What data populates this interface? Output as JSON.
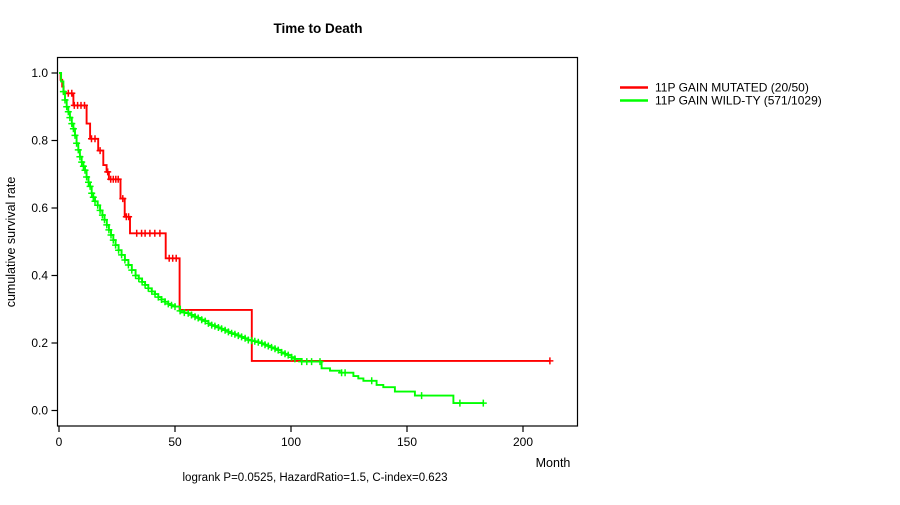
{
  "title": "Time to Death",
  "axes": {
    "y_label": "cumulative survival rate",
    "x_label": "Month"
  },
  "footnote": "logrank P=0.0525, HazardRatio=1.5, C-index=0.623",
  "legend": {
    "entries": [
      {
        "label": "11P GAIN MUTATED (20/50)",
        "color": "#ff0000"
      },
      {
        "label": "11P GAIN WILD-TY (571/1029)",
        "color": "#00ff00"
      }
    ]
  },
  "colors": {
    "mutated": "#ff0000",
    "wildtype": "#00ff00",
    "axis": "#000000"
  },
  "chart_data": {
    "type": "line",
    "subtype": "kaplan_meier_step",
    "title": "Time to Death",
    "xlabel": "Month",
    "ylabel": "cumulative survival rate",
    "xlim": [
      0,
      223
    ],
    "ylim": [
      0.0,
      1.0
    ],
    "x_ticks": [
      0,
      50,
      100,
      150,
      200
    ],
    "y_ticks": [
      1.0,
      0.8,
      0.6,
      0.4,
      0.2,
      0.0
    ],
    "grid": false,
    "legend_position": "outside-right-top",
    "annotation": "logrank P=0.0525, HazardRatio=1.5, C-index=0.623",
    "series": [
      {
        "name": "11P GAIN MUTATED (20/50)",
        "color": "#ff0000",
        "n_events": 20,
        "n_total": 50,
        "end_month": 211.6,
        "points": [
          [
            0,
            1.0
          ],
          [
            0.7,
            0.98
          ],
          [
            1.4,
            0.96
          ],
          [
            2.0,
            0.94
          ],
          [
            6.2,
            0.904
          ],
          [
            11.9,
            0.85
          ],
          [
            13.4,
            0.805
          ],
          [
            16.9,
            0.77
          ],
          [
            19.1,
            0.727
          ],
          [
            20.5,
            0.707
          ],
          [
            21.5,
            0.685
          ],
          [
            26.5,
            0.628
          ],
          [
            28.3,
            0.574
          ],
          [
            30.6,
            0.525
          ],
          [
            46.0,
            0.451
          ],
          [
            52.0,
            0.298
          ],
          [
            83.1,
            0.147
          ]
        ],
        "censors": [
          [
            4.0,
            0.94
          ],
          [
            5.5,
            0.94
          ],
          [
            6.6,
            0.904
          ],
          [
            8.0,
            0.904
          ],
          [
            9.5,
            0.904
          ],
          [
            11.0,
            0.904
          ],
          [
            14.0,
            0.805
          ],
          [
            15.5,
            0.805
          ],
          [
            17.7,
            0.77
          ],
          [
            21.0,
            0.707
          ],
          [
            22.3,
            0.685
          ],
          [
            23.4,
            0.685
          ],
          [
            24.5,
            0.685
          ],
          [
            25.5,
            0.685
          ],
          [
            27.5,
            0.628
          ],
          [
            29.0,
            0.574
          ],
          [
            30.0,
            0.574
          ],
          [
            33.5,
            0.525
          ],
          [
            35.6,
            0.525
          ],
          [
            37.1,
            0.525
          ],
          [
            39.2,
            0.525
          ],
          [
            41.3,
            0.525
          ],
          [
            43.5,
            0.525
          ],
          [
            47.5,
            0.451
          ],
          [
            49.0,
            0.451
          ],
          [
            50.5,
            0.451
          ],
          [
            211.6,
            0.147
          ]
        ],
        "censor_dense_range": null
      },
      {
        "name": "11P GAIN WILD-TY (571/1029)",
        "color": "#00ff00",
        "n_events": 571,
        "n_total": 1029,
        "end_month": 182.9,
        "points": [
          [
            0,
            1.0
          ],
          [
            0.9,
            0.975
          ],
          [
            1.9,
            0.945
          ],
          [
            2.6,
            0.92
          ],
          [
            3.3,
            0.9
          ],
          [
            4.0,
            0.885
          ],
          [
            4.7,
            0.868
          ],
          [
            5.5,
            0.85
          ],
          [
            6.2,
            0.835
          ],
          [
            6.9,
            0.815
          ],
          [
            7.6,
            0.792
          ],
          [
            8.3,
            0.772
          ],
          [
            9.0,
            0.752
          ],
          [
            9.8,
            0.736
          ],
          [
            10.5,
            0.724
          ],
          [
            11.2,
            0.712
          ],
          [
            11.9,
            0.692
          ],
          [
            12.7,
            0.676
          ],
          [
            13.4,
            0.664
          ],
          [
            14.1,
            0.644
          ],
          [
            14.8,
            0.632
          ],
          [
            15.5,
            0.62
          ],
          [
            16.7,
            0.608
          ],
          [
            17.7,
            0.593
          ],
          [
            18.7,
            0.579
          ],
          [
            19.6,
            0.565
          ],
          [
            20.6,
            0.55
          ],
          [
            21.5,
            0.535
          ],
          [
            22.4,
            0.52
          ],
          [
            23.4,
            0.505
          ],
          [
            24.4,
            0.49
          ],
          [
            25.7,
            0.475
          ],
          [
            27.0,
            0.461
          ],
          [
            28.4,
            0.446
          ],
          [
            29.9,
            0.431
          ],
          [
            31.4,
            0.416
          ],
          [
            33.0,
            0.4
          ],
          [
            34.4,
            0.391
          ],
          [
            35.8,
            0.381
          ],
          [
            37.1,
            0.372
          ],
          [
            38.5,
            0.362
          ],
          [
            40.0,
            0.353
          ],
          [
            41.4,
            0.345
          ],
          [
            42.8,
            0.336
          ],
          [
            44.2,
            0.329
          ],
          [
            45.7,
            0.322
          ],
          [
            47.1,
            0.316
          ],
          [
            48.5,
            0.312
          ],
          [
            50.0,
            0.308
          ],
          [
            52.2,
            0.295
          ],
          [
            54.0,
            0.29
          ],
          [
            55.7,
            0.288
          ],
          [
            57.1,
            0.283
          ],
          [
            58.6,
            0.278
          ],
          [
            60.0,
            0.274
          ],
          [
            61.5,
            0.269
          ],
          [
            63.0,
            0.265
          ],
          [
            64.4,
            0.258
          ],
          [
            65.8,
            0.253
          ],
          [
            67.2,
            0.25
          ],
          [
            68.7,
            0.246
          ],
          [
            70.1,
            0.242
          ],
          [
            71.6,
            0.238
          ],
          [
            73.0,
            0.233
          ],
          [
            74.4,
            0.229
          ],
          [
            75.8,
            0.226
          ],
          [
            77.3,
            0.222
          ],
          [
            78.7,
            0.218
          ],
          [
            80.2,
            0.214
          ],
          [
            81.6,
            0.209
          ],
          [
            83.0,
            0.207
          ],
          [
            84.4,
            0.205
          ],
          [
            85.9,
            0.202
          ],
          [
            87.4,
            0.199
          ],
          [
            88.8,
            0.195
          ],
          [
            90.2,
            0.191
          ],
          [
            91.6,
            0.187
          ],
          [
            93.1,
            0.183
          ],
          [
            94.5,
            0.179
          ],
          [
            95.9,
            0.172
          ],
          [
            97.4,
            0.168
          ],
          [
            98.8,
            0.164
          ],
          [
            100.2,
            0.158
          ],
          [
            101.7,
            0.153
          ],
          [
            104.6,
            0.145
          ],
          [
            113.2,
            0.125
          ],
          [
            116.8,
            0.118
          ],
          [
            121.0,
            0.112
          ],
          [
            126.9,
            0.102
          ],
          [
            129.0,
            0.095
          ],
          [
            131.2,
            0.088
          ],
          [
            136.9,
            0.076
          ],
          [
            139.8,
            0.069
          ],
          [
            144.8,
            0.056
          ],
          [
            153.4,
            0.044
          ],
          [
            170.0,
            0.022
          ]
        ],
        "censors": [
          [
            106.8,
            0.145
          ],
          [
            108.9,
            0.145
          ],
          [
            112.5,
            0.145
          ],
          [
            121.8,
            0.112
          ],
          [
            123.3,
            0.112
          ],
          [
            134.8,
            0.088
          ],
          [
            156.3,
            0.044
          ],
          [
            172.8,
            0.022
          ],
          [
            182.9,
            0.022
          ]
        ],
        "censor_dense_range": [
          1,
          105
        ]
      }
    ]
  }
}
